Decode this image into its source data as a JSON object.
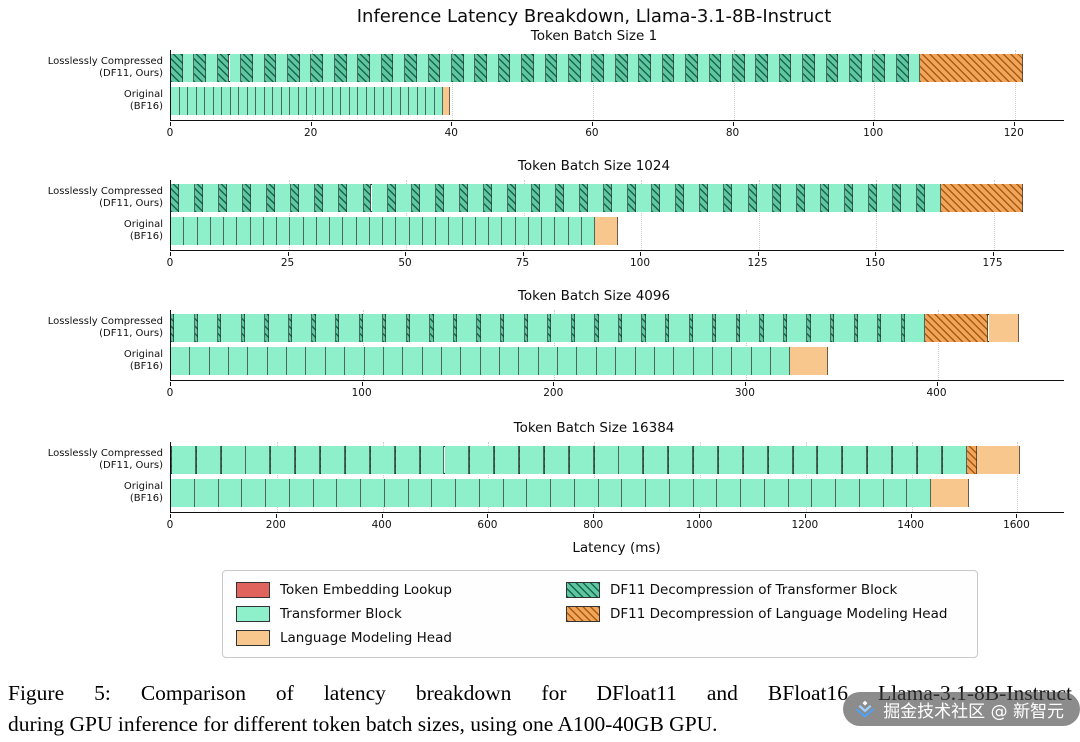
{
  "figure": {
    "title": "Inference Latency Breakdown, Llama-3.1-8B-Instruct",
    "xlabel": "Latency (ms)",
    "caption_line1": "Figure 5: Comparison of latency breakdown for DFloat11 and BFloat16 Llama-3.1-8B-Instruct",
    "caption_line2": "during GPU inference for different token batch sizes, using one A100-40GB GPU."
  },
  "watermark": {
    "text": "掘金技术社区 @ 新智元"
  },
  "colors": {
    "token_embedding": "#e0635e",
    "transformer": "#8df0ca",
    "lm_head": "#f7c78e",
    "df11_decomp_transformer": "#5ec7a1",
    "df11_decomp_lm_head": "#f2a459",
    "edge": "#2b2b2b"
  },
  "legend": {
    "items": [
      {
        "label": "Token Embedding Lookup",
        "type": "token_embedding",
        "hatch": false
      },
      {
        "label": "Transformer Block",
        "type": "transformer",
        "hatch": false
      },
      {
        "label": "Language Modeling Head",
        "type": "lm_head",
        "hatch": false
      },
      {
        "label": "DF11 Decompression of Transformer Block",
        "type": "df11_decomp_transformer",
        "hatch": true
      },
      {
        "label": "DF11 Decompression of Language Modeling Head",
        "type": "df11_decomp_lm_head",
        "hatch": true
      }
    ]
  },
  "chart_data": [
    {
      "type": "bar",
      "stacked": true,
      "orientation": "horizontal",
      "batch_size": 1,
      "title": "Token Batch Size 1",
      "xlim": [
        0,
        127
      ],
      "xticks": [
        0,
        20,
        40,
        60,
        80,
        100,
        120
      ],
      "num_transformer_layers": 32,
      "bars": [
        {
          "name": "df11",
          "label_line1": "Losslessly Compressed",
          "label_line2": "(DF11, Ours)",
          "pattern": {
            "repeat": 32,
            "segments": [
              {
                "type": "df11_decomp_transformer",
                "value": 1.66
              },
              {
                "type": "transformer",
                "value": 1.67
              }
            ]
          },
          "tail": [
            {
              "type": "df11_decomp_lm_head",
              "value": 14.6
            }
          ],
          "total_ms": 121.2
        },
        {
          "name": "bf16",
          "label_line1": "Original",
          "label_line2": "(BF16)",
          "pattern": {
            "repeat": 32,
            "segments": [
              {
                "type": "transformer",
                "value": 1.21
              }
            ]
          },
          "tail": [
            {
              "type": "lm_head",
              "value": 0.9
            }
          ],
          "total_ms": 39.6
        }
      ]
    },
    {
      "type": "bar",
      "stacked": true,
      "orientation": "horizontal",
      "batch_size": 1024,
      "title": "Token Batch Size 1024",
      "xlim": [
        0,
        190
      ],
      "xticks": [
        0,
        25,
        50,
        75,
        100,
        125,
        150,
        175
      ],
      "num_transformer_layers": 32,
      "bars": [
        {
          "name": "df11",
          "label_line1": "Losslessly Compressed",
          "label_line2": "(DF11, Ours)",
          "pattern": {
            "repeat": 32,
            "segments": [
              {
                "type": "df11_decomp_transformer",
                "value": 1.7
              },
              {
                "type": "transformer",
                "value": 3.42
              }
            ]
          },
          "tail": [
            {
              "type": "df11_decomp_lm_head",
              "value": 17.5
            }
          ],
          "total_ms": 181.3
        },
        {
          "name": "bf16",
          "label_line1": "Original",
          "label_line2": "(BF16)",
          "pattern": {
            "repeat": 32,
            "segments": [
              {
                "type": "transformer",
                "value": 2.82
              }
            ]
          },
          "tail": [
            {
              "type": "lm_head",
              "value": 4.8
            }
          ],
          "total_ms": 95.0
        }
      ]
    },
    {
      "type": "bar",
      "stacked": true,
      "orientation": "horizontal",
      "batch_size": 4096,
      "title": "Token Batch Size 4096",
      "xlim": [
        0,
        466
      ],
      "xticks": [
        0,
        100,
        200,
        300,
        400
      ],
      "num_transformer_layers": 32,
      "bars": [
        {
          "name": "df11",
          "label_line1": "Losslessly Compressed",
          "label_line2": "(DF11, Ours)",
          "pattern": {
            "repeat": 32,
            "segments": [
              {
                "type": "df11_decomp_transformer",
                "value": 1.7
              },
              {
                "type": "transformer",
                "value": 10.6
              }
            ]
          },
          "tail": [
            {
              "type": "df11_decomp_lm_head",
              "value": 33.0
            },
            {
              "type": "lm_head",
              "value": 16.0
            }
          ],
          "total_ms": 442.6
        },
        {
          "name": "bf16",
          "label_line1": "Original",
          "label_line2": "(BF16)",
          "pattern": {
            "repeat": 32,
            "segments": [
              {
                "type": "transformer",
                "value": 10.1
              }
            ]
          },
          "tail": [
            {
              "type": "lm_head",
              "value": 19.8
            }
          ],
          "total_ms": 343.0
        }
      ]
    },
    {
      "type": "bar",
      "stacked": true,
      "orientation": "horizontal",
      "batch_size": 16384,
      "title": "Token Batch Size 16384",
      "xlim": [
        0,
        1688
      ],
      "xticks": [
        0,
        200,
        400,
        600,
        800,
        1000,
        1200,
        1400,
        1600
      ],
      "num_transformer_layers": 32,
      "bars": [
        {
          "name": "df11",
          "label_line1": "Losslessly Compressed",
          "label_line2": "(DF11, Ours)",
          "pattern": {
            "repeat": 32,
            "segments": [
              {
                "type": "df11_decomp_transformer",
                "value": 1.7
              },
              {
                "type": "transformer",
                "value": 45.3
              }
            ]
          },
          "tail": [
            {
              "type": "df11_decomp_lm_head",
              "value": 19.0
            },
            {
              "type": "lm_head",
              "value": 82.0
            }
          ],
          "total_ms": 1605.0
        },
        {
          "name": "bf16",
          "label_line1": "Original",
          "label_line2": "(BF16)",
          "pattern": {
            "repeat": 32,
            "segments": [
              {
                "type": "transformer",
                "value": 44.9
              }
            ]
          },
          "tail": [
            {
              "type": "lm_head",
              "value": 71.0
            }
          ],
          "total_ms": 1507.8
        }
      ]
    }
  ]
}
